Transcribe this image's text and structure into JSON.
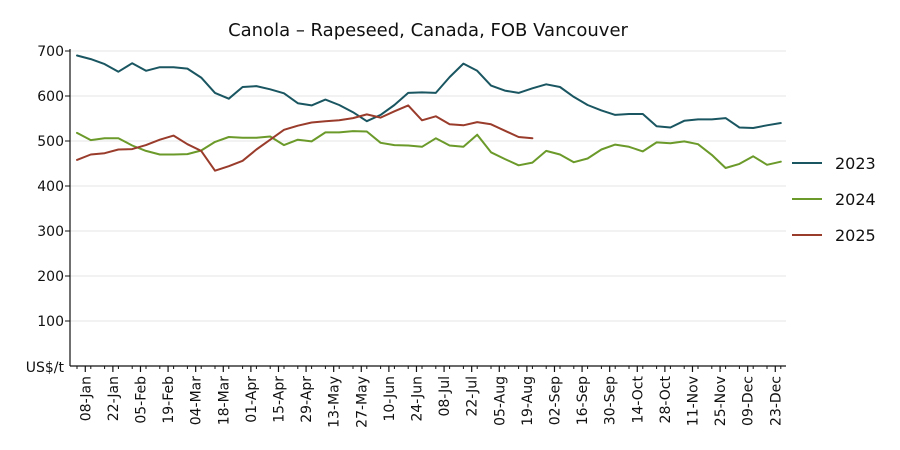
{
  "chart_data": {
    "type": "line",
    "title": "Canola – Rapeseed, Canada, FOB Vancouver",
    "ylabel": "US$/t",
    "ylim": [
      0,
      700
    ],
    "yticks": [
      100,
      200,
      300,
      400,
      500,
      600,
      700
    ],
    "grid": "horizontal",
    "legend_position": "right",
    "x_tick_labels": [
      "08-Jan",
      "22-Jan",
      "05-Feb",
      "19-Feb",
      "04-Mar",
      "18-Mar",
      "01-Apr",
      "15-Apr",
      "29-Apr",
      "13-May",
      "27-May",
      "10-Jun",
      "24-Jun",
      "08-Jul",
      "22-Jul",
      "05-Aug",
      "19-Aug",
      "02-Sep",
      "16-Sep",
      "30-Sep",
      "14-Oct",
      "28-Oct",
      "11-Nov",
      "25-Nov",
      "09-Dec",
      "23-Dec"
    ],
    "x_points_count": 52,
    "series": [
      {
        "name": "2023",
        "color": "#1a5661",
        "values": [
          690,
          682,
          671,
          654,
          673,
          656,
          664,
          664,
          661,
          641,
          607,
          594,
          620,
          622,
          615,
          606,
          584,
          579,
          592,
          580,
          564,
          544,
          558,
          580,
          607,
          608,
          607,
          642,
          672,
          656,
          623,
          612,
          607,
          617,
          626,
          620,
          598,
          580,
          568,
          558,
          560,
          560,
          533,
          530,
          545,
          548,
          548,
          551,
          530,
          529,
          535,
          540
        ]
      },
      {
        "name": "2024",
        "color": "#6b9a2a",
        "values": [
          518,
          502,
          506,
          506,
          490,
          478,
          470,
          470,
          471,
          479,
          498,
          509,
          507,
          507,
          510,
          491,
          503,
          499,
          519,
          519,
          522,
          521,
          496,
          491,
          490,
          487,
          506,
          490,
          487,
          514,
          475,
          460,
          446,
          452,
          478,
          470,
          453,
          461,
          481,
          492,
          487,
          477,
          497,
          495,
          499,
          493,
          469,
          440,
          449,
          466,
          447,
          454
        ]
      },
      {
        "name": "2025",
        "color": "#9a3c2c",
        "values": [
          458,
          470,
          473,
          481,
          482,
          491,
          503,
          512,
          493,
          478,
          434,
          444,
          456,
          481,
          503,
          525,
          534,
          541,
          544,
          546,
          551,
          559,
          552,
          566,
          579,
          546,
          555,
          537,
          535,
          542,
          537,
          523,
          509,
          506
        ]
      }
    ]
  }
}
